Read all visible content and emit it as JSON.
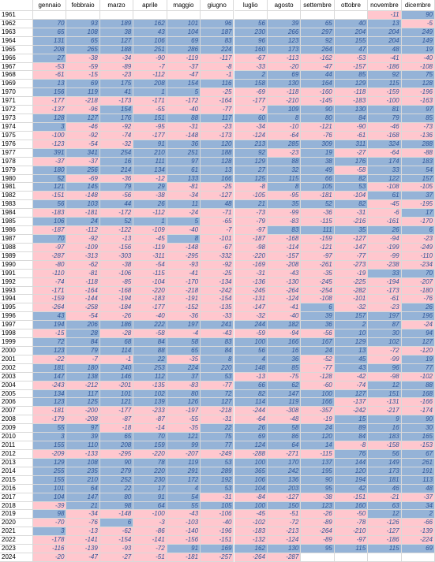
{
  "table": {
    "columns": [
      "gennaio",
      "febbraio",
      "marzo",
      "aprile",
      "maggio",
      "giugno",
      "luglio",
      "agosto",
      "settembre",
      "ottobre",
      "novembre",
      "dicembre"
    ],
    "positive_color": "#95b3d7",
    "negative_color": "#ffc7ce",
    "rows": [
      {
        "year": 1961,
        "values": [
          null,
          null,
          null,
          null,
          null,
          null,
          null,
          null,
          null,
          null,
          -11,
          90
        ]
      },
      {
        "year": 1962,
        "values": [
          70,
          93,
          189,
          162,
          101,
          96,
          56,
          39,
          65,
          40,
          13,
          -5
        ]
      },
      {
        "year": 1963,
        "values": [
          65,
          108,
          38,
          43,
          104,
          187,
          230,
          266,
          297,
          204,
          204,
          249
        ]
      },
      {
        "year": 1964,
        "values": [
          131,
          65,
          127,
          106,
          69,
          83,
          96,
          123,
          92,
          155,
          204,
          149
        ]
      },
      {
        "year": 1965,
        "values": [
          208,
          265,
          188,
          251,
          286,
          224,
          160,
          173,
          264,
          47,
          48,
          19
        ]
      },
      {
        "year": 1966,
        "values": [
          27,
          -38,
          -34,
          -90,
          -119,
          -117,
          -67,
          -113,
          -162,
          -53,
          -41,
          -40
        ]
      },
      {
        "year": 1967,
        "values": [
          -53,
          -59,
          -89,
          -7,
          -37,
          -8,
          -33,
          -20,
          -47,
          -157,
          -186,
          -108
        ]
      },
      {
        "year": 1968,
        "values": [
          -61,
          -15,
          -23,
          -112,
          -47,
          -1,
          2,
          69,
          44,
          85,
          92,
          75
        ]
      },
      {
        "year": 1969,
        "values": [
          13,
          69,
          175,
          208,
          154,
          116,
          158,
          130,
          164,
          129,
          115,
          128
        ]
      },
      {
        "year": 1970,
        "values": [
          156,
          119,
          41,
          1,
          5,
          -25,
          -69,
          -118,
          -160,
          -118,
          -159,
          -196
        ]
      },
      {
        "year": 1971,
        "values": [
          -177,
          -218,
          -173,
          -171,
          -172,
          -164,
          -177,
          -210,
          -145,
          -183,
          -100,
          -163
        ]
      },
      {
        "year": 1972,
        "values": [
          -137,
          -96,
          154,
          -55,
          -40,
          -77,
          -7,
          109,
          90,
          130,
          81,
          97
        ]
      },
      {
        "year": 1973,
        "values": [
          128,
          127,
          176,
          151,
          88,
          117,
          60,
          8,
          80,
          84,
          79,
          85
        ]
      },
      {
        "year": 1974,
        "values": [
          3,
          -46,
          -92,
          -95,
          -31,
          -23,
          -34,
          -10,
          -121,
          -90,
          -46,
          -73
        ]
      },
      {
        "year": 1975,
        "values": [
          -100,
          -92,
          -74,
          -177,
          -148,
          -173,
          -124,
          -64,
          -76,
          -61,
          -168,
          -136
        ]
      },
      {
        "year": 1976,
        "values": [
          -123,
          -54,
          -32,
          91,
          36,
          120,
          213,
          285,
          309,
          311,
          324,
          288
        ]
      },
      {
        "year": 1977,
        "values": [
          391,
          341,
          254,
          210,
          251,
          188,
          92,
          -23,
          19,
          -27,
          -64,
          -88
        ]
      },
      {
        "year": 1978,
        "values": [
          -37,
          -37,
          16,
          111,
          97,
          128,
          129,
          88,
          38,
          176,
          174,
          183
        ]
      },
      {
        "year": 1979,
        "values": [
          180,
          256,
          214,
          134,
          61,
          13,
          27,
          32,
          49,
          -58,
          33,
          54
        ]
      },
      {
        "year": 1980,
        "values": [
          52,
          -69,
          -36,
          -12,
          133,
          166,
          125,
          115,
          66,
          82,
          122,
          157
        ]
      },
      {
        "year": 1981,
        "values": [
          121,
          145,
          79,
          29,
          -81,
          -25,
          -8,
          8,
          105,
          53,
          -108,
          -105
        ]
      },
      {
        "year": 1982,
        "values": [
          -151,
          -148,
          -56,
          -38,
          -34,
          -127,
          -105,
          -95,
          -181,
          -104,
          61,
          37
        ]
      },
      {
        "year": 1983,
        "values": [
          56,
          103,
          44,
          26,
          11,
          48,
          21,
          35,
          52,
          82,
          -45,
          -195
        ]
      },
      {
        "year": 1984,
        "values": [
          -183,
          -181,
          -172,
          -112,
          -24,
          -71,
          -73,
          -99,
          -36,
          -31,
          -6,
          17
        ]
      },
      {
        "year": 1985,
        "values": [
          106,
          24,
          52,
          1,
          5,
          -65,
          -79,
          -83,
          -115,
          -216,
          -161,
          -170
        ]
      },
      {
        "year": 1986,
        "values": [
          -187,
          -112,
          -122,
          -109,
          -40,
          -7,
          -97,
          83,
          111,
          35,
          26,
          6
        ]
      },
      {
        "year": 1987,
        "values": [
          70,
          -92,
          -13,
          -45,
          8,
          -101,
          -187,
          -168,
          -159,
          -127,
          -94,
          -23
        ]
      },
      {
        "year": 1988,
        "values": [
          -97,
          -109,
          -156,
          -119,
          -148,
          -67,
          -98,
          -114,
          -121,
          -147,
          -199,
          -249
        ]
      },
      {
        "year": 1989,
        "values": [
          -287,
          -313,
          -303,
          -311,
          -295,
          -332,
          -220,
          -157,
          -97,
          -77,
          -99,
          -110
        ]
      },
      {
        "year": 1990,
        "values": [
          -80,
          -62,
          -38,
          -54,
          -93,
          -92,
          -169,
          -208,
          -261,
          -273,
          -238,
          -234
        ]
      },
      {
        "year": 1991,
        "values": [
          -110,
          -81,
          -106,
          -115,
          -41,
          -25,
          -31,
          -43,
          -35,
          -19,
          33,
          70
        ]
      },
      {
        "year": 1992,
        "values": [
          -74,
          -118,
          -85,
          -104,
          -170,
          -134,
          -136,
          -130,
          -245,
          -225,
          -194,
          -207
        ]
      },
      {
        "year": 1993,
        "values": [
          -171,
          -164,
          -168,
          -220,
          -218,
          -242,
          -245,
          -264,
          -254,
          -282,
          -173,
          -180
        ]
      },
      {
        "year": 1994,
        "values": [
          -159,
          -144,
          -194,
          -183,
          -191,
          -154,
          -131,
          -124,
          -108,
          -101,
          -61,
          -76
        ]
      },
      {
        "year": 1995,
        "values": [
          -264,
          -258,
          -184,
          -177,
          -152,
          -135,
          -147,
          -41,
          6,
          -32,
          -23,
          26
        ]
      },
      {
        "year": 1996,
        "values": [
          43,
          -54,
          -26,
          -40,
          -36,
          -33,
          -32,
          -40,
          39,
          157,
          197,
          196
        ]
      },
      {
        "year": 1997,
        "values": [
          194,
          206,
          186,
          222,
          197,
          241,
          244,
          182,
          36,
          2,
          87,
          -24
        ]
      },
      {
        "year": 1998,
        "values": [
          -15,
          28,
          -28,
          -58,
          -4,
          -43,
          -59,
          -94,
          -56,
          10,
          30,
          94
        ]
      },
      {
        "year": 1999,
        "values": [
          72,
          84,
          68,
          84,
          58,
          83,
          100,
          166,
          167,
          129,
          102,
          127
        ]
      },
      {
        "year": 2000,
        "values": [
          123,
          79,
          114,
          88,
          65,
          84,
          56,
          16,
          24,
          13,
          -72,
          -120
        ]
      },
      {
        "year": 2001,
        "values": [
          -22,
          -7,
          -1,
          22,
          -35,
          8,
          4,
          36,
          -52,
          45,
          -99,
          19
        ]
      },
      {
        "year": 2002,
        "values": [
          181,
          180,
          240,
          253,
          224,
          220,
          148,
          85,
          -77,
          43,
          96,
          77
        ]
      },
      {
        "year": 2003,
        "values": [
          147,
          138,
          146,
          112,
          37,
          53,
          -13,
          -75,
          -128,
          -42,
          -98,
          -102
        ]
      },
      {
        "year": 2004,
        "values": [
          -243,
          -212,
          -201,
          -135,
          -83,
          -77,
          66,
          62,
          -60,
          -74,
          12,
          88
        ]
      },
      {
        "year": 2005,
        "values": [
          134,
          117,
          101,
          102,
          80,
          72,
          82,
          147,
          100,
          127,
          151,
          168
        ]
      },
      {
        "year": 2006,
        "values": [
          123,
          125,
          121,
          139,
          126,
          127,
          114,
          119,
          166,
          -137,
          -131,
          -166
        ]
      },
      {
        "year": 2007,
        "values": [
          -181,
          -200,
          -177,
          -233,
          -197,
          -218,
          -244,
          -308,
          -357,
          -242,
          -217,
          -174
        ]
      },
      {
        "year": 2008,
        "values": [
          -179,
          -208,
          -87,
          -87,
          -55,
          -31,
          -64,
          -48,
          -19,
          15,
          9,
          90
        ]
      },
      {
        "year": 2009,
        "values": [
          55,
          97,
          -18,
          -14,
          -35,
          22,
          26,
          58,
          24,
          89,
          16,
          30
        ]
      },
      {
        "year": 2010,
        "values": [
          3,
          39,
          65,
          70,
          121,
          75,
          69,
          86,
          120,
          84,
          183,
          165
        ]
      },
      {
        "year": 2011,
        "values": [
          155,
          110,
          208,
          159,
          99,
          77,
          124,
          64,
          14,
          -8,
          -158,
          -153
        ]
      },
      {
        "year": 2012,
        "values": [
          -209,
          -133,
          -295,
          -220,
          -207,
          -249,
          -288,
          -271,
          -115,
          76,
          56,
          67
        ]
      },
      {
        "year": 2013,
        "values": [
          129,
          108,
          90,
          78,
          119,
          53,
          100,
          170,
          137,
          144,
          149,
          261
        ]
      },
      {
        "year": 2014,
        "values": [
          255,
          235,
          279,
          220,
          291,
          289,
          365,
          242,
          195,
          120,
          173,
          191
        ]
      },
      {
        "year": 2015,
        "values": [
          155,
          210,
          252,
          230,
          172,
          192,
          106,
          136,
          90,
          194,
          181,
          113
        ]
      },
      {
        "year": 2016,
        "values": [
          101,
          64,
          22,
          17,
          4,
          53,
          104,
          203,
          95,
          42,
          46,
          48
        ]
      },
      {
        "year": 2017,
        "values": [
          104,
          147,
          80,
          91,
          54,
          -31,
          -84,
          -127,
          -38,
          -151,
          -21,
          -37
        ]
      },
      {
        "year": 2018,
        "values": [
          -39,
          21,
          98,
          64,
          55,
          105,
          100,
          150,
          123,
          160,
          63,
          34
        ]
      },
      {
        "year": 2019,
        "values": [
          98,
          -34,
          -148,
          -100,
          -43,
          -106,
          -45,
          -51,
          -26,
          -50,
          12,
          2
        ]
      },
      {
        "year": 2020,
        "values": [
          -70,
          -76,
          6,
          -3,
          -103,
          -40,
          -102,
          -72,
          -89,
          -78,
          -126,
          -66
        ]
      },
      {
        "year": 2021,
        "values": [
          3,
          -13,
          -62,
          -86,
          -140,
          -196,
          -183,
          -213,
          -264,
          -210,
          -127,
          -139
        ]
      },
      {
        "year": 2022,
        "values": [
          -178,
          -141,
          -154,
          -141,
          -156,
          -151,
          -132,
          -124,
          -89,
          -97,
          -186,
          -224
        ]
      },
      {
        "year": 2023,
        "values": [
          -116,
          -139,
          -93,
          -72,
          91,
          169,
          162,
          130,
          95,
          115,
          115,
          69
        ]
      },
      {
        "year": 2024,
        "values": [
          -20,
          -47,
          -27,
          -51,
          -181,
          -257,
          -264,
          -287,
          null,
          null,
          null,
          null
        ]
      }
    ]
  }
}
